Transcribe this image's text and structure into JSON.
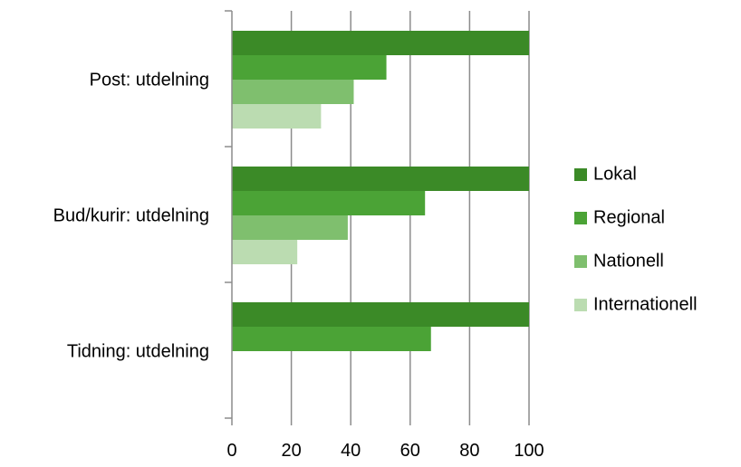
{
  "chart_data": {
    "type": "bar",
    "orientation": "horizontal",
    "categories": [
      "Post: utdelning",
      "Bud/kurir: utdelning",
      "Tidning: utdelning"
    ],
    "series": [
      {
        "name": "Lokal",
        "color": "#3b8a27",
        "values": [
          100,
          100,
          100
        ]
      },
      {
        "name": "Regional",
        "color": "#4ba336",
        "values": [
          52,
          65,
          67
        ]
      },
      {
        "name": "Nationell",
        "color": "#7fbf6e",
        "values": [
          41,
          39,
          null
        ]
      },
      {
        "name": "Internationell",
        "color": "#bbdcb1",
        "values": [
          30,
          22,
          null
        ]
      }
    ],
    "xlim": [
      0,
      100
    ],
    "xticks": [
      0,
      20,
      40,
      60,
      80,
      100
    ],
    "grid": "vertical",
    "legend_position": "right"
  }
}
